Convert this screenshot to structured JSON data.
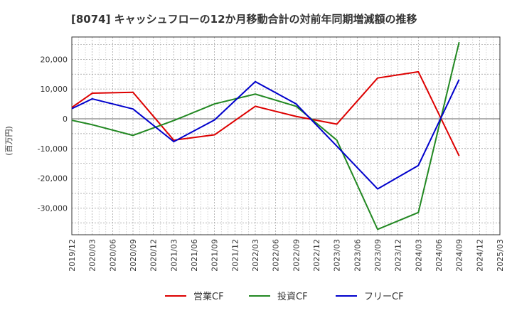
{
  "chart_data": {
    "type": "line",
    "title": "[8074]  キャッシュフローの12か月移動合計の対前年同期増減額の推移",
    "ylabel": "(百万円)",
    "xlabel": "",
    "ylim": [
      -39000,
      27500
    ],
    "yticks": [
      20000,
      10000,
      0,
      -10000,
      -20000,
      -30000
    ],
    "ytick_labels": [
      "20,000",
      "10,000",
      "0",
      "-10,000",
      "-20,000",
      "-30,000"
    ],
    "categories": [
      "2019/12",
      "2020/03",
      "2020/06",
      "2020/09",
      "2020/12",
      "2021/03",
      "2021/06",
      "2021/09",
      "2021/12",
      "2022/03",
      "2022/06",
      "2022/09",
      "2022/12",
      "2023/03",
      "2023/06",
      "2023/09",
      "2023/12",
      "2024/03",
      "2024/06",
      "2024/09",
      "2024/12",
      "2025/03"
    ],
    "grid": true,
    "legend_position": "bottom",
    "series": [
      {
        "name": "営業CF",
        "color": "#dd0000",
        "points": [
          [
            "2019/12",
            3800
          ],
          [
            "2020/03",
            8600
          ],
          [
            "2020/09",
            8900
          ],
          [
            "2021/03",
            -7200
          ],
          [
            "2021/09",
            -5400
          ],
          [
            "2022/03",
            4200
          ],
          [
            "2022/09",
            800
          ],
          [
            "2023/03",
            -1800
          ],
          [
            "2023/09",
            13700
          ],
          [
            "2024/03",
            15800
          ],
          [
            "2024/09",
            -12500
          ]
        ]
      },
      {
        "name": "投資CF",
        "color": "#228822",
        "points": [
          [
            "2019/12",
            -500
          ],
          [
            "2020/03",
            -2000
          ],
          [
            "2020/09",
            -5600
          ],
          [
            "2021/03",
            -600
          ],
          [
            "2021/09",
            5000
          ],
          [
            "2022/03",
            8300
          ],
          [
            "2022/09",
            4200
          ],
          [
            "2023/03",
            -7200
          ],
          [
            "2023/09",
            -37200
          ],
          [
            "2024/03",
            -31500
          ],
          [
            "2024/09",
            25800
          ]
        ]
      },
      {
        "name": "フリーCF",
        "color": "#0000cc",
        "points": [
          [
            "2019/12",
            3400
          ],
          [
            "2020/03",
            6700
          ],
          [
            "2020/09",
            3300
          ],
          [
            "2021/03",
            -7700
          ],
          [
            "2021/09",
            -400
          ],
          [
            "2022/03",
            12500
          ],
          [
            "2022/09",
            5000
          ],
          [
            "2023/03",
            -9200
          ],
          [
            "2023/09",
            -23600
          ],
          [
            "2024/03",
            -15700
          ],
          [
            "2024/09",
            13200
          ]
        ]
      }
    ]
  }
}
